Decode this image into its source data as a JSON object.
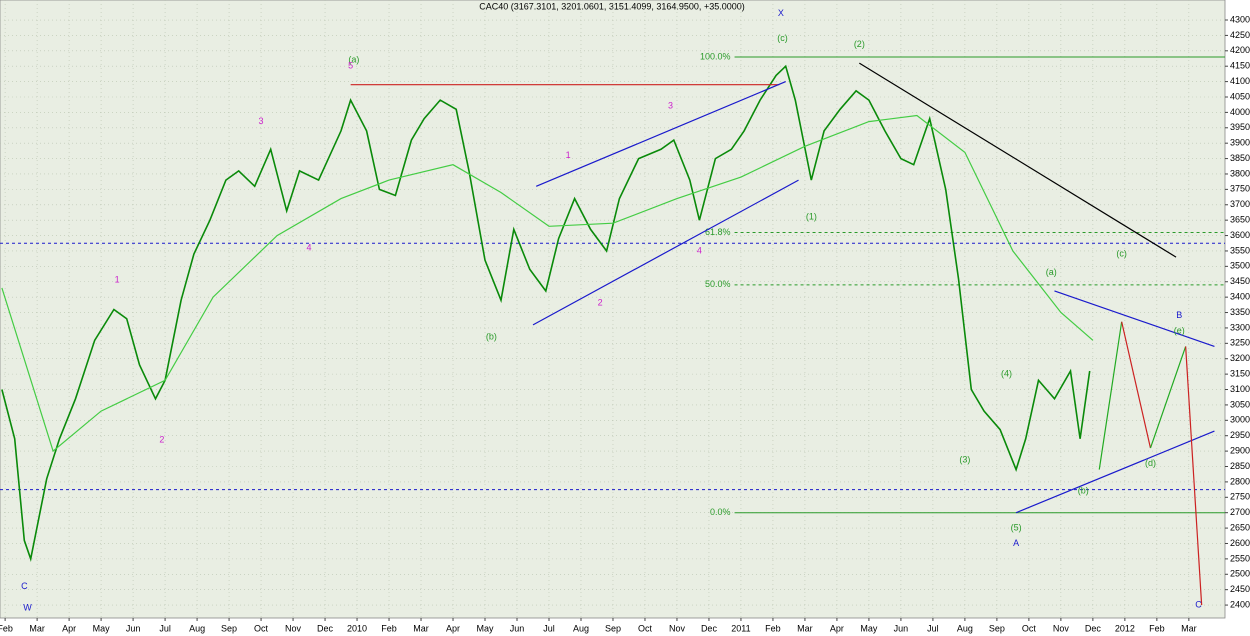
{
  "chart_data": {
    "type": "line",
    "title": "CAC40 (3167.3101, 3201.0601, 3151.4099, 3164.9500, +35.0000)",
    "x": [
      -0.1,
      0.3,
      0.6,
      0.8,
      1.3,
      1.7,
      2.2,
      2.8,
      3.4,
      3.8,
      4.2,
      4.7,
      5.0,
      5.5,
      5.9,
      6.4,
      6.9,
      7.3,
      7.8,
      8.3,
      8.8,
      9.2,
      9.8,
      10.5,
      10.8,
      11.3,
      11.7,
      12.2,
      12.7,
      13.1,
      13.6,
      14.1,
      14.5,
      15.0,
      15.5,
      15.9,
      16.4,
      16.9,
      17.3,
      17.8,
      18.3,
      18.8,
      19.2,
      19.8,
      20.5,
      20.9,
      21.4,
      21.7,
      22.2,
      22.7,
      23.1,
      23.6,
      24.1,
      24.4,
      24.7,
      25.2,
      25.6,
      26.1,
      26.6,
      27.0,
      27.5,
      28.0,
      28.4,
      28.9,
      29.4,
      29.8,
      30.2,
      30.6,
      31.1,
      31.6,
      31.9,
      32.3,
      32.8,
      33.3,
      33.6,
      33.9
    ],
    "series": [
      {
        "color": "#0a8a0a",
        "values": [
          3100,
          2940,
          2610,
          2550,
          2810,
          2940,
          3070,
          3260,
          3360,
          3330,
          3180,
          3070,
          3130,
          3390,
          3540,
          3650,
          3780,
          3810,
          3760,
          3880,
          3680,
          3810,
          3780,
          3940,
          4040,
          3940,
          3750,
          3730,
          3910,
          3980,
          4040,
          4010,
          3810,
          3520,
          3390,
          3620,
          3490,
          3420,
          3590,
          3720,
          3620,
          3550,
          3720,
          3850,
          3880,
          3910,
          3780,
          3650,
          3850,
          3880,
          3940,
          4040,
          4120,
          4150,
          4040,
          3780,
          3940,
          4010,
          4070,
          4040,
          3940,
          3850,
          3830,
          3980,
          3750,
          3460,
          3100,
          3030,
          2970,
          2840,
          2940,
          3130,
          3070,
          3160,
          2940,
          3160
        ]
      },
      {
        "color": "#44cc44",
        "x": [
          -0.1,
          1.5,
          3,
          5,
          6.5,
          8.5,
          10.5,
          12,
          14,
          15.5,
          17,
          19,
          21,
          23,
          25,
          27,
          28.5,
          30,
          31.5,
          33,
          34
        ],
        "values": [
          3430,
          2900,
          3030,
          3130,
          3400,
          3600,
          3720,
          3780,
          3830,
          3740,
          3630,
          3640,
          3720,
          3790,
          3890,
          3970,
          3990,
          3870,
          3550,
          3350,
          3260
        ]
      }
    ],
    "xlim": [
      -0.16,
      38.13
    ],
    "ylim": [
      2358,
      4365
    ],
    "xticks": [
      {
        "value": 0,
        "label": "Feb"
      },
      {
        "value": 1,
        "label": "Mar"
      },
      {
        "value": 2,
        "label": "Apr"
      },
      {
        "value": 3,
        "label": "May"
      },
      {
        "value": 4,
        "label": "Jun"
      },
      {
        "value": 5,
        "label": "Jul"
      },
      {
        "value": 6,
        "label": "Aug"
      },
      {
        "value": 7,
        "label": "Sep"
      },
      {
        "value": 8,
        "label": "Oct"
      },
      {
        "value": 9,
        "label": "Nov"
      },
      {
        "value": 10,
        "label": "Dec"
      },
      {
        "value": 11,
        "label": "2010"
      },
      {
        "value": 12,
        "label": "Feb"
      },
      {
        "value": 13,
        "label": "Mar"
      },
      {
        "value": 14,
        "label": "Apr"
      },
      {
        "value": 15,
        "label": "May"
      },
      {
        "value": 16,
        "label": "Jun"
      },
      {
        "value": 17,
        "label": "Jul"
      },
      {
        "value": 18,
        "label": "Aug"
      },
      {
        "value": 19,
        "label": "Sep"
      },
      {
        "value": 20,
        "label": "Oct"
      },
      {
        "value": 21,
        "label": "Nov"
      },
      {
        "value": 22,
        "label": "Dec"
      },
      {
        "value": 23,
        "label": "2011"
      },
      {
        "value": 24,
        "label": "Feb"
      },
      {
        "value": 25,
        "label": "Mar"
      },
      {
        "value": 26,
        "label": "Apr"
      },
      {
        "value": 27,
        "label": "May"
      },
      {
        "value": 28,
        "label": "Jun"
      },
      {
        "value": 29,
        "label": "Jul"
      },
      {
        "value": 30,
        "label": "Aug"
      },
      {
        "value": 31,
        "label": "Sep"
      },
      {
        "value": 32,
        "label": "Oct"
      },
      {
        "value": 33,
        "label": "Nov"
      },
      {
        "value": 34,
        "label": "Dec"
      },
      {
        "value": 35,
        "label": "2012"
      },
      {
        "value": 36,
        "label": "Feb"
      },
      {
        "value": 37,
        "label": "Mar"
      }
    ],
    "yticks": [
      2400,
      2450,
      2500,
      2550,
      2600,
      2650,
      2700,
      2750,
      2800,
      2850,
      2900,
      2950,
      3000,
      3050,
      3100,
      3150,
      3200,
      3250,
      3300,
      3350,
      3400,
      3450,
      3500,
      3550,
      3600,
      3650,
      3700,
      3750,
      3800,
      3850,
      3900,
      3950,
      4000,
      4050,
      4100,
      4150,
      4200,
      4250,
      4300
    ],
    "grid": true,
    "levels": [
      {
        "value": 4180,
        "label": "100.0%",
        "from": 22.8,
        "color": "#2a9a2a",
        "style": "solid"
      },
      {
        "value": 3610,
        "label": "61.8%",
        "from": 22.8,
        "color": "#2a9a2a",
        "style": "dash"
      },
      {
        "value": 3440,
        "label": "50.0%",
        "from": 22.8,
        "color": "#2a9a2a",
        "style": "dash"
      },
      {
        "value": 2700,
        "label": "0.0%",
        "from": 22.8,
        "color": "#2a9a2a",
        "style": "solid"
      },
      {
        "value": 3575,
        "color": "#1a1acc",
        "style": "dash"
      },
      {
        "value": 2775,
        "color": "#1a1acc",
        "style": "dash"
      }
    ],
    "segments": [
      {
        "x": [
          10.8,
          24.2
        ],
        "y": [
          4090,
          4090
        ],
        "color": "#cc2222"
      },
      {
        "x": [
          16.6,
          24.4
        ],
        "y": [
          3760,
          4100
        ],
        "color": "#1a1acc"
      },
      {
        "x": [
          16.5,
          24.8
        ],
        "y": [
          3310,
          3780
        ],
        "color": "#1a1acc"
      },
      {
        "x": [
          26.7,
          36.6
        ],
        "y": [
          4160,
          3530
        ],
        "color": "#000000"
      },
      {
        "x": [
          32.8,
          37.8
        ],
        "y": [
          3420,
          3240
        ],
        "color": "#1a1acc"
      },
      {
        "x": [
          31.6,
          37.8
        ],
        "y": [
          2700,
          2965
        ],
        "color": "#1a1acc"
      },
      {
        "x": [
          34.2,
          34.9
        ],
        "y": [
          2840,
          3320
        ],
        "color": "#22aa22"
      },
      {
        "x": [
          34.9,
          35.8
        ],
        "y": [
          3320,
          2910
        ],
        "color": "#cc2222"
      },
      {
        "x": [
          35.8,
          36.9
        ],
        "y": [
          2910,
          3240
        ],
        "color": "#22aa22"
      },
      {
        "x": [
          36.9,
          37.4
        ],
        "y": [
          3240,
          2400
        ],
        "color": "#cc2222"
      }
    ],
    "annotations": [
      {
        "text": "X",
        "x": 24.25,
        "y": 4320,
        "color": "#1a1acc"
      },
      {
        "text": "(a)",
        "x": 10.9,
        "y": 4170,
        "color": "#2a9a2a"
      },
      {
        "text": "5",
        "x": 10.8,
        "y": 4150,
        "color": "#cc22cc"
      },
      {
        "text": "3",
        "x": 8.0,
        "y": 3970,
        "color": "#cc22cc"
      },
      {
        "text": "1",
        "x": 3.5,
        "y": 3455,
        "color": "#cc22cc"
      },
      {
        "text": "2",
        "x": 4.9,
        "y": 2935,
        "color": "#cc22cc"
      },
      {
        "text": "4",
        "x": 9.5,
        "y": 3560,
        "color": "#cc22cc"
      },
      {
        "text": "C",
        "x": 0.6,
        "y": 2460,
        "color": "#1a1acc"
      },
      {
        "text": "W",
        "x": 0.7,
        "y": 2390,
        "color": "#1a1acc"
      },
      {
        "text": "(b)",
        "x": 15.2,
        "y": 3270,
        "color": "#2a9a2a"
      },
      {
        "text": "1",
        "x": 17.6,
        "y": 3860,
        "color": "#cc22cc"
      },
      {
        "text": "3",
        "x": 20.8,
        "y": 4020,
        "color": "#cc22cc"
      },
      {
        "text": "2",
        "x": 18.6,
        "y": 3380,
        "color": "#cc22cc"
      },
      {
        "text": "4",
        "x": 21.7,
        "y": 3550,
        "color": "#cc22cc"
      },
      {
        "text": "(c)",
        "x": 24.3,
        "y": 4240,
        "color": "#2a9a2a"
      },
      {
        "text": "(2)",
        "x": 26.7,
        "y": 4220,
        "color": "#2a9a2a"
      },
      {
        "text": "(1)",
        "x": 25.2,
        "y": 3660,
        "color": "#2a9a2a"
      },
      {
        "text": "(3)",
        "x": 30.0,
        "y": 2870,
        "color": "#2a9a2a"
      },
      {
        "text": "(4)",
        "x": 31.3,
        "y": 3150,
        "color": "#2a9a2a"
      },
      {
        "text": "(5)",
        "x": 31.6,
        "y": 2650,
        "color": "#2a9a2a"
      },
      {
        "text": "A",
        "x": 31.6,
        "y": 2600,
        "color": "#1a1acc"
      },
      {
        "text": "(a)",
        "x": 32.7,
        "y": 3480,
        "color": "#2a9a2a"
      },
      {
        "text": "(b)",
        "x": 33.7,
        "y": 2770,
        "color": "#2a9a2a"
      },
      {
        "text": "(c)",
        "x": 34.9,
        "y": 3540,
        "color": "#2a9a2a"
      },
      {
        "text": "(d)",
        "x": 35.8,
        "y": 2860,
        "color": "#2a9a2a"
      },
      {
        "text": "(e)",
        "x": 36.7,
        "y": 3290,
        "color": "#2a9a2a"
      },
      {
        "text": "B",
        "x": 36.7,
        "y": 3340,
        "color": "#1a1acc"
      },
      {
        "text": "C",
        "x": 37.3,
        "y": 2400,
        "color": "#1a1acc"
      }
    ]
  }
}
